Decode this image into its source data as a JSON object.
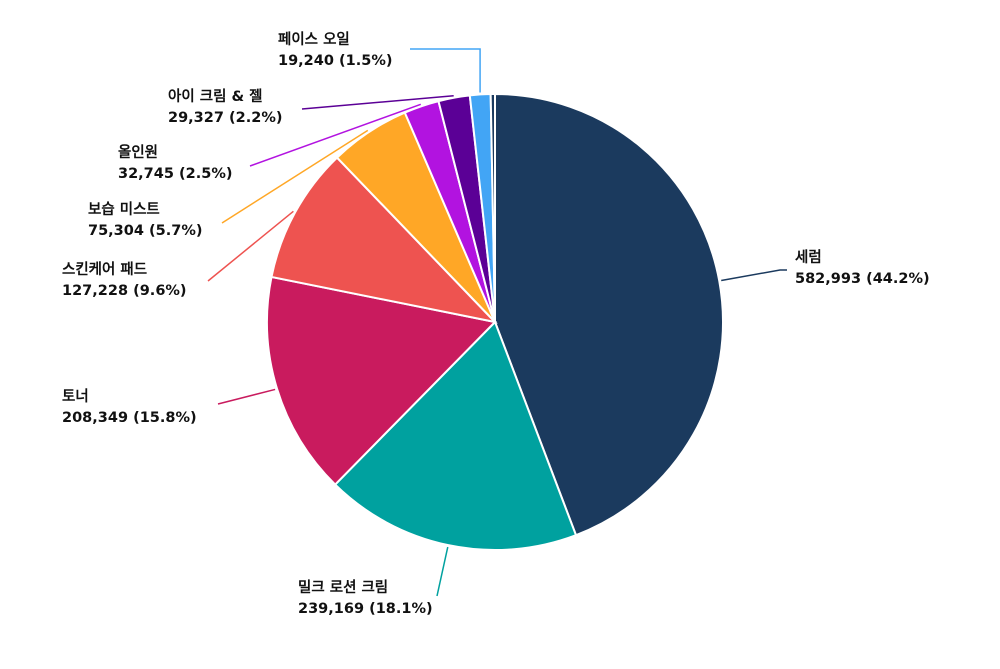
{
  "chart_data": {
    "type": "pie",
    "start_angle_deg": 0,
    "direction": "clockwise",
    "slices": [
      {
        "name": "세럼",
        "value": 582993,
        "label": "582,993 (44.2%)",
        "color": "#1b3a5e"
      },
      {
        "name": "밀크 로션 크림",
        "value": 239169,
        "label": "239,169 (18.1%)",
        "color": "#00a19f"
      },
      {
        "name": "토너",
        "value": 208349,
        "label": "208,349 (15.8%)",
        "color": "#c91b5e"
      },
      {
        "name": "스킨케어 패드",
        "value": 127228,
        "label": "127,228 (9.6%)",
        "color": "#ee5350"
      },
      {
        "name": "보습 미스트",
        "value": 75304,
        "label": "75,304 (5.7%)",
        "color": "#ffa726"
      },
      {
        "name": "올인원",
        "value": 32745,
        "label": "32,745 (2.5%)",
        "color": "#b213e0"
      },
      {
        "name": "아이 크림 & 젤",
        "value": 29327,
        "label": "29,327 (2.2%)",
        "color": "#5b0096"
      },
      {
        "name": "페이스 오일",
        "value": 19240,
        "label": "19,240 (1.5%)",
        "color": "#42a5f5"
      },
      {
        "name": "",
        "value": 4000,
        "label": "",
        "color": "#1b3a5e"
      }
    ]
  }
}
